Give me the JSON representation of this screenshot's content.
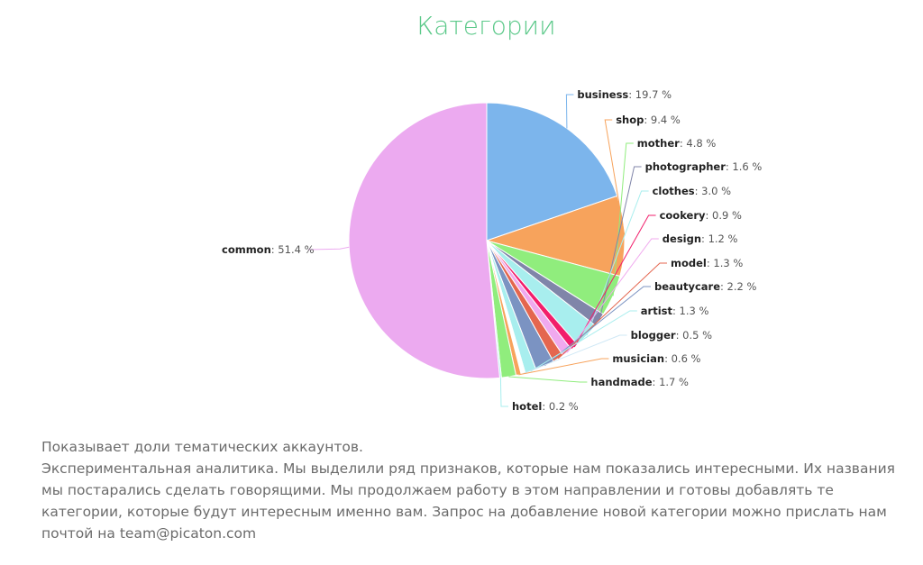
{
  "page": {
    "title": "Категории"
  },
  "chart_data": {
    "type": "pie",
    "title": "Категории",
    "value_suffix": " %",
    "slices": [
      {
        "label": "business",
        "value": 19.7,
        "color": "#7cb5ec"
      },
      {
        "label": "shop",
        "value": 9.4,
        "color": "#f7a35c"
      },
      {
        "label": "mother",
        "value": 4.8,
        "color": "#90ed7d"
      },
      {
        "label": "photographer",
        "value": 1.6,
        "color": "#8085a9"
      },
      {
        "label": "clothes",
        "value": 3.0,
        "color": "#a8eeee"
      },
      {
        "label": "cookery",
        "value": 0.9,
        "color": "#f21e6b"
      },
      {
        "label": "design",
        "value": 1.2,
        "color": "#f0a9ee"
      },
      {
        "label": "model",
        "value": 1.3,
        "color": "#e4664f"
      },
      {
        "label": "beautycare",
        "value": 2.2,
        "color": "#7b93c2"
      },
      {
        "label": "artist",
        "value": 1.3,
        "color": "#a8eeee"
      },
      {
        "label": "blogger",
        "value": 0.5,
        "color": "#ffffff"
      },
      {
        "label": "musician",
        "value": 0.6,
        "color": "#f7a35c"
      },
      {
        "label": "handmade",
        "value": 1.7,
        "color": "#90ed7d"
      },
      {
        "label": "hotel",
        "value": 0.2,
        "color": "#a8eeee"
      },
      {
        "label": "common",
        "value": 51.4,
        "color": "#ecaaf0"
      }
    ]
  },
  "description": {
    "line1": "Показывает доли тематических аккаунтов.",
    "line2": "Экспериментальная аналитика. Мы выделили ряд признаков, которые нам показались интересными. Их названия мы постарались сделать говорящими. Мы продолжаем работу в этом направлении и готовы добавлять те категории, которые будут интересным именно вам. Запрос на добавление новой категории можно прислать нам почтой на team@picaton.com"
  }
}
